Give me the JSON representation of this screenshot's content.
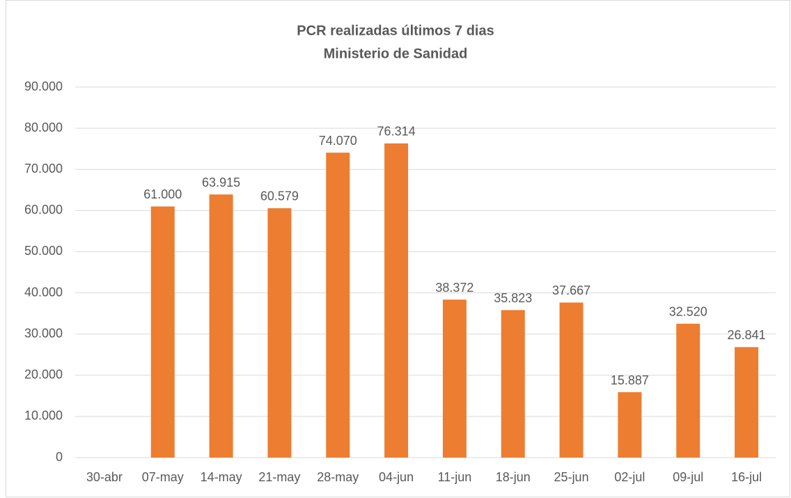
{
  "chart_data": {
    "type": "bar",
    "title": "PCR realizadas últimos 7 dias",
    "subtitle": "Ministerio de Sanidad",
    "categories": [
      "30-abr",
      "07-may",
      "14-may",
      "21-may",
      "28-may",
      "04-jun",
      "11-jun",
      "18-jun",
      "25-jun",
      "02-jul",
      "09-jul",
      "16-jul"
    ],
    "values": [
      null,
      61000,
      63915,
      60579,
      74070,
      76314,
      38372,
      35823,
      37667,
      15887,
      32520,
      26841
    ],
    "value_labels": [
      null,
      "61.000",
      "63.915",
      "60.579",
      "74.070",
      "76.314",
      "38.372",
      "35.823",
      "37.667",
      "15.887",
      "32.520",
      "26.841"
    ],
    "color": "#ed7d31",
    "ylim": [
      0,
      90000
    ],
    "yticks": [
      0,
      {
        "value": 10000,
        "label": "10.000"
      },
      {
        "value": 20000,
        "label": "20.000"
      },
      {
        "value": 30000,
        "label": "30.000"
      },
      {
        "value": 40000,
        "label": "40.000"
      },
      {
        "value": 50000,
        "label": "50.000"
      },
      {
        "value": 60000,
        "label": "60.000"
      },
      {
        "value": 70000,
        "label": "70.000"
      },
      {
        "value": 80000,
        "label": "80.000"
      },
      {
        "value": 90000,
        "label": "90.000"
      }
    ],
    "grid": true
  }
}
